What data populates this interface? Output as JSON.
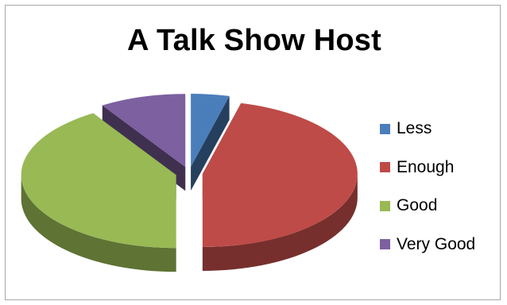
{
  "chart_data": {
    "type": "pie",
    "title": "A Talk Show Host",
    "categories": [
      "Less",
      "Enough",
      "Good",
      "Very Good"
    ],
    "values": [
      4,
      46,
      41,
      9
    ],
    "colors": [
      "#4a7ebb",
      "#be4b48",
      "#98b954",
      "#7d60a0"
    ],
    "legend_position": "right",
    "style": "3d-exploded"
  }
}
